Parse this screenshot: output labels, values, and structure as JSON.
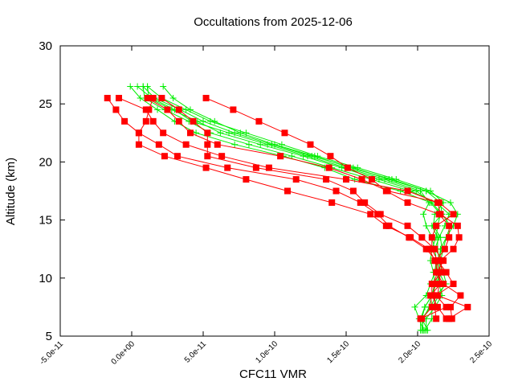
{
  "chart_data": {
    "type": "line",
    "title": "Occultations from 2025-12-06",
    "xlabel": "CFC11 VMR",
    "ylabel": "Altitude (km)",
    "xlim": [
      -5e-11,
      2.5e-10
    ],
    "ylim": [
      5,
      30
    ],
    "grid": false,
    "x_ticks": [
      -5e-11,
      0,
      5e-11,
      1e-10,
      1.5e-10,
      2e-10,
      2.5e-10
    ],
    "x_tick_labels": [
      "-5.0e-11",
      "0.0e+00",
      "5.0e-11",
      "1.0e-10",
      "1.5e-10",
      "2.0e-10",
      "2.5e-10"
    ],
    "y_ticks": [
      5,
      10,
      15,
      20,
      25,
      30
    ],
    "y_tick_labels": [
      "5",
      "10",
      "15",
      "20",
      "25",
      "30"
    ],
    "colors": {
      "red_series": "#ff0000",
      "green_series": "#00ee00"
    },
    "red_altitudes": [
      25.5,
      24.5,
      23.5,
      22.5,
      21.5,
      20.5,
      19.5,
      18.5,
      17.5,
      16.5,
      15.5,
      14.5,
      13.5,
      12.5,
      11.5,
      10.5,
      9.5,
      8.5,
      7.5,
      6.5
    ],
    "green_altitudes": [
      26.5,
      25.5,
      24.5,
      23.5,
      22.5,
      21.5,
      20.5,
      19.5,
      18.5,
      17.5,
      16.5,
      15.5,
      14.5,
      13.5,
      12.5,
      11.5,
      10.5,
      9.5,
      8.5,
      7.5,
      6.5,
      5.5
    ],
    "red_series": [
      {
        "values": [
          -1.7e-11,
          -1.1e-11,
          -5e-12,
          5e-12,
          5e-12,
          2.3e-11,
          5.2e-11,
          8e-11,
          1.09e-10,
          1.4e-10,
          1.67e-10,
          1.78e-10,
          1.95e-10,
          2.08e-10,
          2.12e-10,
          2.14e-10,
          2.16e-10,
          2.09e-10,
          2.1e-10,
          2.03e-10
        ]
      },
      {
        "values": [
          1.5e-11,
          1.2e-11,
          1e-11,
          5e-12,
          1.9e-11,
          3.2e-11,
          6.7e-11,
          1.15e-10,
          1.43e-10,
          1.6e-10,
          1.72e-10,
          1.8e-10,
          1.94e-10,
          2.06e-10,
          2.13e-10,
          2.16e-10,
          2.15e-10,
          2.14e-10,
          2.35e-10,
          2.22e-10
        ]
      },
      {
        "values": [
          2.1e-11,
          3.3e-11,
          4.3e-11,
          5.3e-11,
          5.3e-11,
          5.3e-11,
          8.7e-11,
          1.36e-10,
          1.55e-10,
          1.63e-10,
          1.74e-10,
          1.93e-10,
          2.03e-10,
          2.12e-10,
          2.18e-10,
          2.14e-10,
          2.11e-10,
          2.12e-10,
          2.12e-10,
          2.13e-10
        ]
      },
      {
        "values": [
          5.2e-11,
          7.1e-11,
          8.9e-11,
          1.07e-10,
          1.25e-10,
          1.39e-10,
          1.51e-10,
          1.68e-10,
          1.78e-10,
          1.93e-10,
          2.15e-10,
          2.22e-10,
          2.22e-10,
          2.19e-10,
          2.13e-10,
          2.13e-10,
          2.18e-10,
          2.3e-10,
          2.23e-10,
          2.24e-10
        ]
      },
      {
        "values": [
          -9e-12,
          1e-11,
          1.5e-11,
          2.2e-11,
          3.8e-11,
          6.3e-11,
          9.6e-11,
          1.5e-10,
          1.93e-10,
          2.14e-10,
          2.16e-10,
          2.28e-10,
          2.29e-10,
          2.25e-10,
          2.16e-10,
          2.17e-10,
          2.1e-10,
          2.1e-10,
          2.14e-10,
          2.2e-10
        ]
      },
      {
        "values": [
          1.1e-11,
          2.5e-11,
          3.3e-11,
          4.1e-11,
          6e-11,
          1.04e-10,
          1.38e-10,
          1.61e-10,
          1.79e-10,
          2.15e-10,
          2.25e-10,
          2.13e-10,
          2.1e-10,
          2.1e-10,
          2.14e-10,
          2.2e-10,
          2.25e-10,
          2.13e-10,
          2.2e-10,
          2.02e-10
        ]
      }
    ],
    "green_series": [
      {
        "values": [
          -1e-12,
          6e-12,
          1.8e-11,
          3e-11,
          4.5e-11,
          7.2e-11,
          1.06e-10,
          1.35e-10,
          1.56e-10,
          1.88e-10,
          2.09e-10,
          2.16e-10,
          2.14e-10,
          2.13e-10,
          2.1e-10,
          2.09e-10,
          2.11e-10,
          2.12e-10,
          2.1e-10,
          2.05e-10,
          2.02e-10,
          2.02e-10
        ]
      },
      {
        "values": [
          8e-12,
          9e-12,
          2.3e-11,
          4e-11,
          5.5e-11,
          8.2e-11,
          1.12e-10,
          1.4e-10,
          1.68e-10,
          1.95e-10,
          2.13e-10,
          2.22e-10,
          2.19e-10,
          2.15e-10,
          2.12e-10,
          2.13e-10,
          2.14e-10,
          2.15e-10,
          2.17e-10,
          2.12e-10,
          2.06e-10,
          2.06e-10
        ]
      },
      {
        "values": [
          1.1e-11,
          1.2e-11,
          2.8e-11,
          4.6e-11,
          6.2e-11,
          9e-11,
          1.2e-10,
          1.47e-10,
          1.73e-10,
          1.99e-10,
          2.1e-10,
          2.17e-10,
          2.23e-10,
          2.2e-10,
          2.16e-10,
          2.15e-10,
          2.16e-10,
          2.13e-10,
          2.1e-10,
          2.08e-10,
          2.04e-10,
          2.03e-10
        ]
      },
      {
        "values": [
          2.2e-11,
          2.9e-11,
          4.1e-11,
          5.8e-11,
          7.6e-11,
          1e-10,
          1.28e-10,
          1.53e-10,
          1.82e-10,
          2.06e-10,
          2.23e-10,
          2.28e-10,
          2.25e-10,
          2.2e-10,
          2.18e-10,
          2.16e-10,
          2.15e-10,
          2.19e-10,
          2.15e-10,
          2.1e-10,
          2.1e-10,
          2.05e-10
        ]
      },
      {
        "values": [
          4e-12,
          1.4e-11,
          3e-11,
          4.2e-11,
          6.8e-11,
          9.5e-11,
          1.23e-10,
          1.5e-10,
          1.77e-10,
          2.02e-10,
          2.08e-10,
          2.04e-10,
          2.06e-10,
          2.1e-10,
          2.12e-10,
          2.13e-10,
          2.12e-10,
          2.09e-10,
          2.06e-10,
          1.98e-10,
          2.01e-10,
          2.04e-10
        ]
      },
      {
        "values": [
          8e-12,
          1.6e-11,
          3.4e-11,
          5e-11,
          7.2e-11,
          9.8e-11,
          1.26e-10,
          1.55e-10,
          1.8e-10,
          2.06e-10,
          2.16e-10,
          2.17e-10,
          2.1e-10,
          2.14e-10,
          2.14e-10,
          2.15e-10,
          2.18e-10,
          2.2e-10,
          2.13e-10,
          2.09e-10,
          2.03e-10,
          2.07e-10
        ]
      },
      {
        "values": [
          1.1e-11,
          2.1e-11,
          3.8e-11,
          5.5e-11,
          8e-11,
          1.05e-10,
          1.3e-10,
          1.58e-10,
          1.85e-10,
          2.09e-10,
          2.18e-10,
          2.12e-10,
          2.11e-10,
          2.16e-10,
          2.17e-10,
          2.14e-10,
          2.15e-10,
          2.12e-10,
          2.1e-10,
          2.05e-10,
          2.03e-10,
          2.04e-10
        ]
      }
    ]
  }
}
